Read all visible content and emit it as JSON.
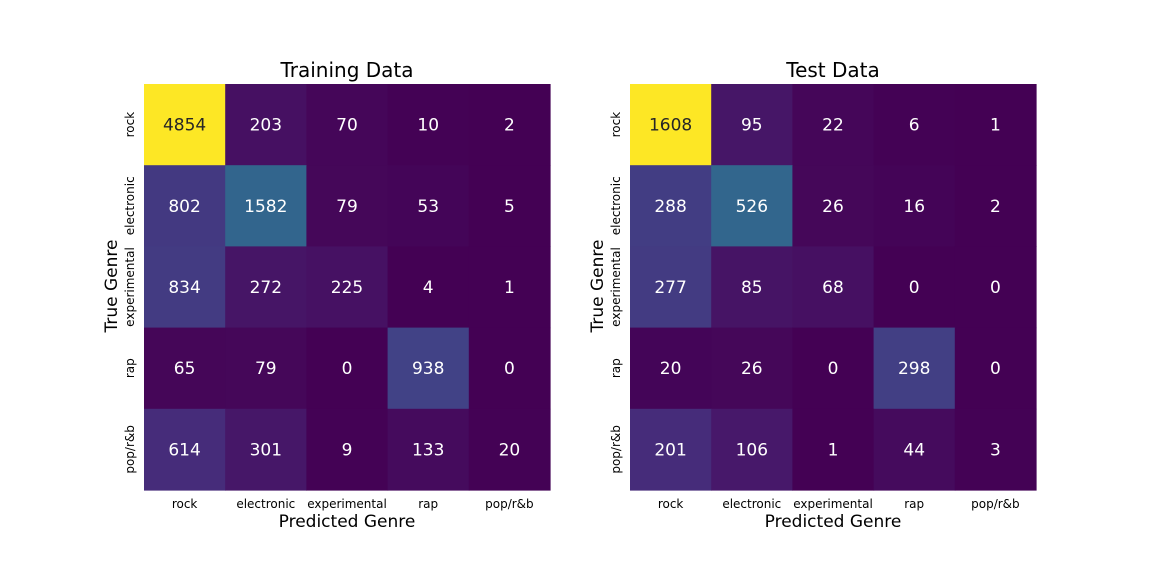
{
  "chart_data": [
    {
      "type": "heatmap",
      "title": "Training Data",
      "xlabel": "Predicted Genre",
      "ylabel": "True Genre",
      "x_categories": [
        "rock",
        "electronic",
        "experimental",
        "rap",
        "pop/r&b"
      ],
      "y_categories": [
        "rock",
        "electronic",
        "experimental",
        "rap",
        "pop/r&b"
      ],
      "values": [
        [
          4854,
          203,
          70,
          10,
          2
        ],
        [
          802,
          1582,
          79,
          53,
          5
        ],
        [
          834,
          272,
          225,
          4,
          1
        ],
        [
          65,
          79,
          0,
          938,
          0
        ],
        [
          614,
          301,
          9,
          133,
          20
        ]
      ],
      "colormap": "viridis",
      "colorbar": false
    },
    {
      "type": "heatmap",
      "title": "Test Data",
      "xlabel": "Predicted Genre",
      "ylabel": "True Genre",
      "x_categories": [
        "rock",
        "electronic",
        "experimental",
        "rap",
        "pop/r&b"
      ],
      "y_categories": [
        "rock",
        "electronic",
        "experimental",
        "rap",
        "pop/r&b"
      ],
      "values": [
        [
          1608,
          95,
          22,
          6,
          1
        ],
        [
          288,
          526,
          26,
          16,
          2
        ],
        [
          277,
          85,
          68,
          0,
          0
        ],
        [
          20,
          26,
          0,
          298,
          0
        ],
        [
          201,
          106,
          1,
          44,
          3
        ]
      ],
      "colormap": "viridis",
      "colorbar": false
    }
  ]
}
